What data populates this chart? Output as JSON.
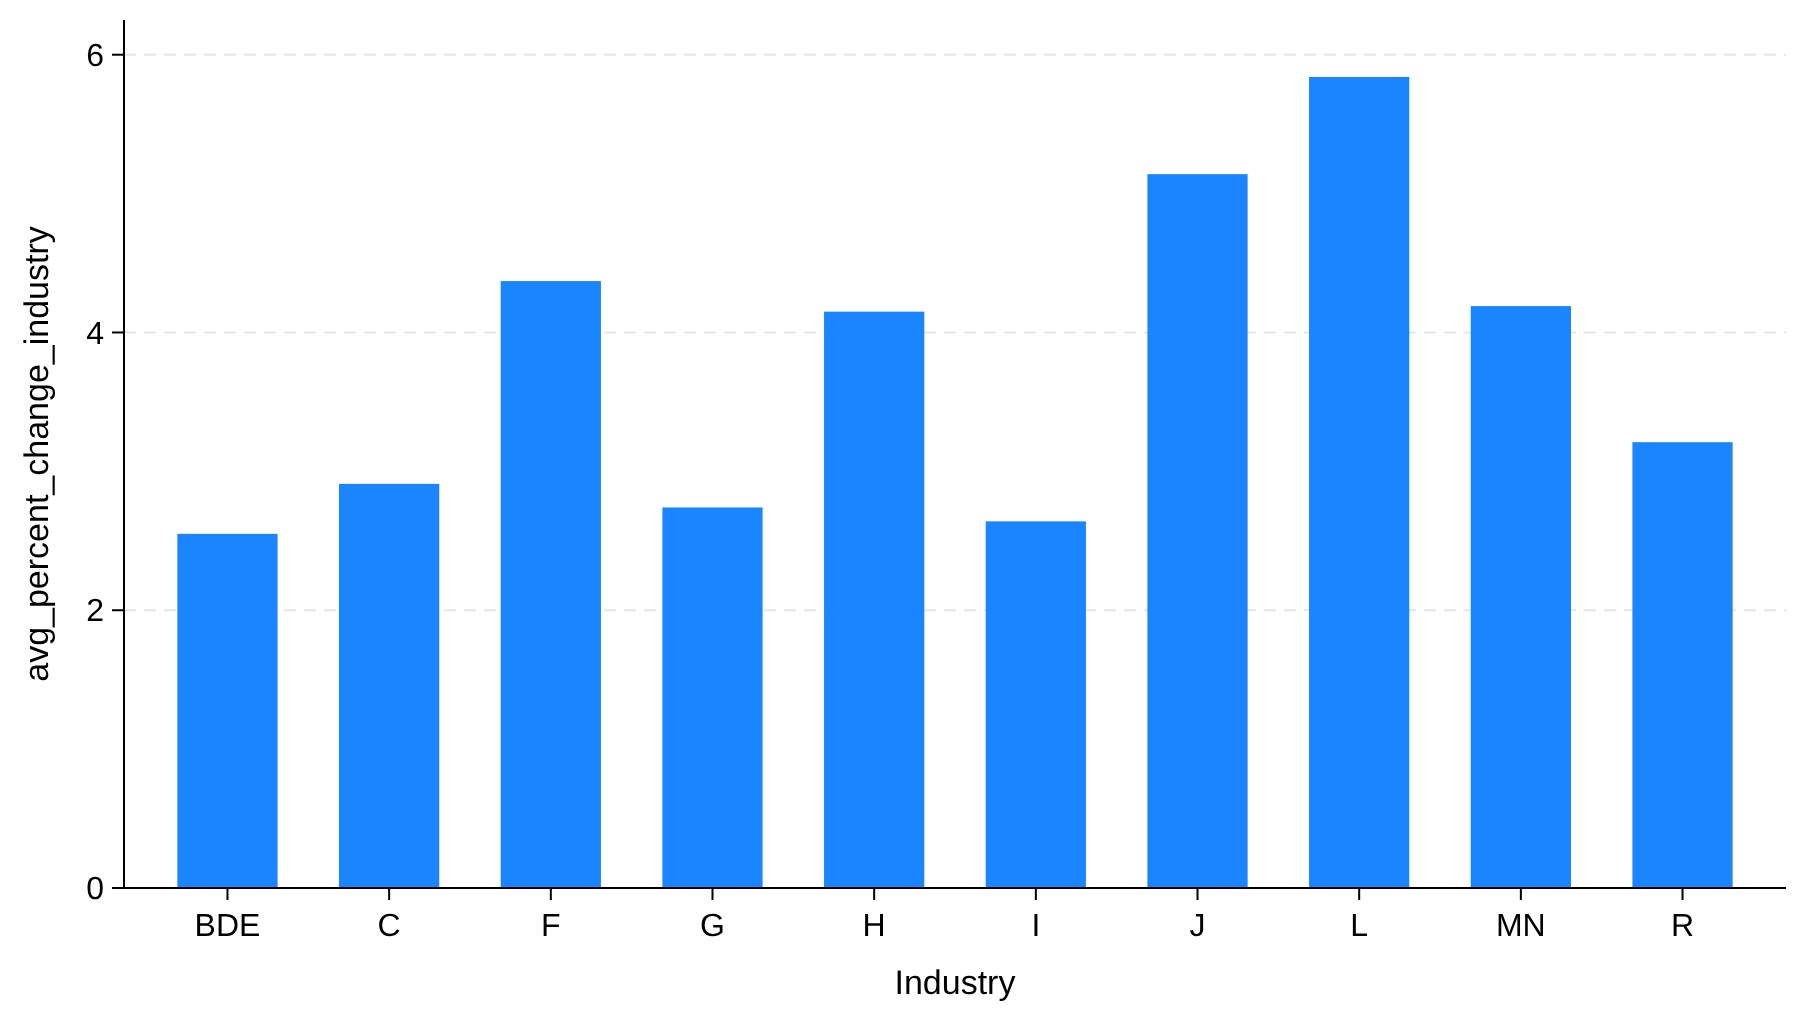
{
  "chart_data": {
    "type": "bar",
    "xlabel": "Industry",
    "ylabel": "avg_percent_change_industry",
    "categories": [
      "BDE",
      "C",
      "F",
      "G",
      "H",
      "I",
      "J",
      "L",
      "MN",
      "R"
    ],
    "values": [
      2.55,
      2.91,
      4.37,
      2.74,
      4.15,
      2.64,
      5.14,
      5.84,
      4.19,
      3.21
    ],
    "color": "#1a85ff",
    "ylim": [
      0,
      6.25
    ],
    "yticks": [
      0,
      2,
      4,
      6
    ],
    "grid": "y"
  }
}
